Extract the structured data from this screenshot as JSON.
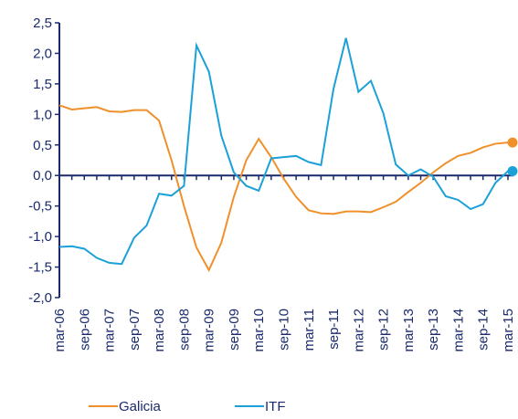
{
  "chart_data": {
    "type": "line",
    "categories": [
      "mar-06",
      null,
      "sep-06",
      null,
      "mar-07",
      null,
      "sep-07",
      null,
      "mar-08",
      null,
      "sep-08",
      null,
      "mar-09",
      null,
      "sep-09",
      null,
      "mar-10",
      null,
      "sep-10",
      null,
      "mar-11",
      null,
      "sep-11",
      null,
      "mar-12",
      null,
      "sep-12",
      null,
      "mar-13",
      null,
      "sep-13",
      null,
      "mar-14",
      null,
      "sep-14",
      null,
      "mar-15"
    ],
    "series": [
      {
        "name": "Galicia",
        "color": "#f0902a",
        "values": [
          1.15,
          1.08,
          1.1,
          1.12,
          1.05,
          1.04,
          1.07,
          1.07,
          0.9,
          0.25,
          -0.5,
          -1.18,
          -1.55,
          -1.1,
          -0.35,
          0.25,
          0.6,
          0.3,
          -0.05,
          -0.35,
          -0.57,
          -0.62,
          -0.63,
          -0.59,
          -0.59,
          -0.6,
          -0.52,
          -0.43,
          -0.27,
          -0.12,
          0.05,
          0.2,
          0.32,
          0.37,
          0.46,
          0.52,
          0.54
        ]
      },
      {
        "name": "ITF",
        "color": "#1ba1d8",
        "values": [
          -1.17,
          -1.16,
          -1.2,
          -1.35,
          -1.43,
          -1.45,
          -1.02,
          -0.82,
          -0.3,
          -0.33,
          -0.17,
          2.13,
          1.7,
          0.65,
          0.05,
          -0.17,
          -0.25,
          0.28,
          0.3,
          0.32,
          0.22,
          0.17,
          1.42,
          2.25,
          1.37,
          1.55,
          1.02,
          0.18,
          0.0,
          0.1,
          -0.02,
          -0.34,
          -0.4,
          -0.55,
          -0.47,
          -0.12,
          0.07
        ]
      }
    ],
    "ylim": [
      -2,
      2.5
    ],
    "yticks": [
      {
        "value": -2,
        "label": "-2,0"
      },
      {
        "value": -1.5,
        "label": "-1,5"
      },
      {
        "value": -1,
        "label": "-1,0"
      },
      {
        "value": -0.5,
        "label": "-0,5"
      },
      {
        "value": 0,
        "label": "0,0"
      },
      {
        "value": 0.5,
        "label": "0,5"
      },
      {
        "value": 1,
        "label": "1,0"
      },
      {
        "value": 1.5,
        "label": "1,5"
      },
      {
        "value": 2,
        "label": "2,0"
      },
      {
        "value": 2.5,
        "label": "2,5"
      }
    ],
    "legend": "bottom"
  }
}
